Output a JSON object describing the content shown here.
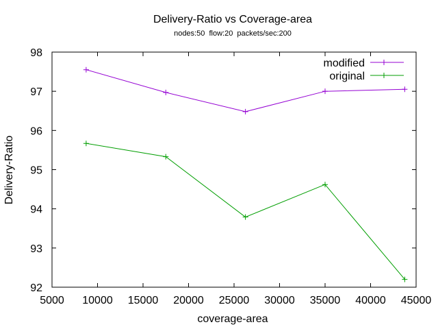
{
  "chart_data": {
    "type": "line",
    "title": "Delivery-Ratio vs Coverage-area",
    "subtitle": "nodes:50  flow:20  packets/sec:200",
    "xlabel": "coverage-area",
    "ylabel": "Delivery-Ratio",
    "xlim": [
      5000,
      45000
    ],
    "ylim": [
      92,
      98
    ],
    "xticks": [
      5000,
      10000,
      15000,
      20000,
      25000,
      30000,
      35000,
      40000,
      45000
    ],
    "yticks": [
      92,
      93,
      94,
      95,
      96,
      97,
      98
    ],
    "grid": false,
    "legend_position": "top-right",
    "series": [
      {
        "name": "modified",
        "color": "#9400d3",
        "x": [
          8750,
          17500,
          26250,
          35000,
          43750
        ],
        "y": [
          97.55,
          96.97,
          96.48,
          97.0,
          97.05
        ]
      },
      {
        "name": "original",
        "color": "#009e00",
        "x": [
          8750,
          17500,
          26250,
          35000,
          43750
        ],
        "y": [
          95.67,
          95.33,
          93.79,
          94.62,
          92.2
        ]
      }
    ]
  }
}
